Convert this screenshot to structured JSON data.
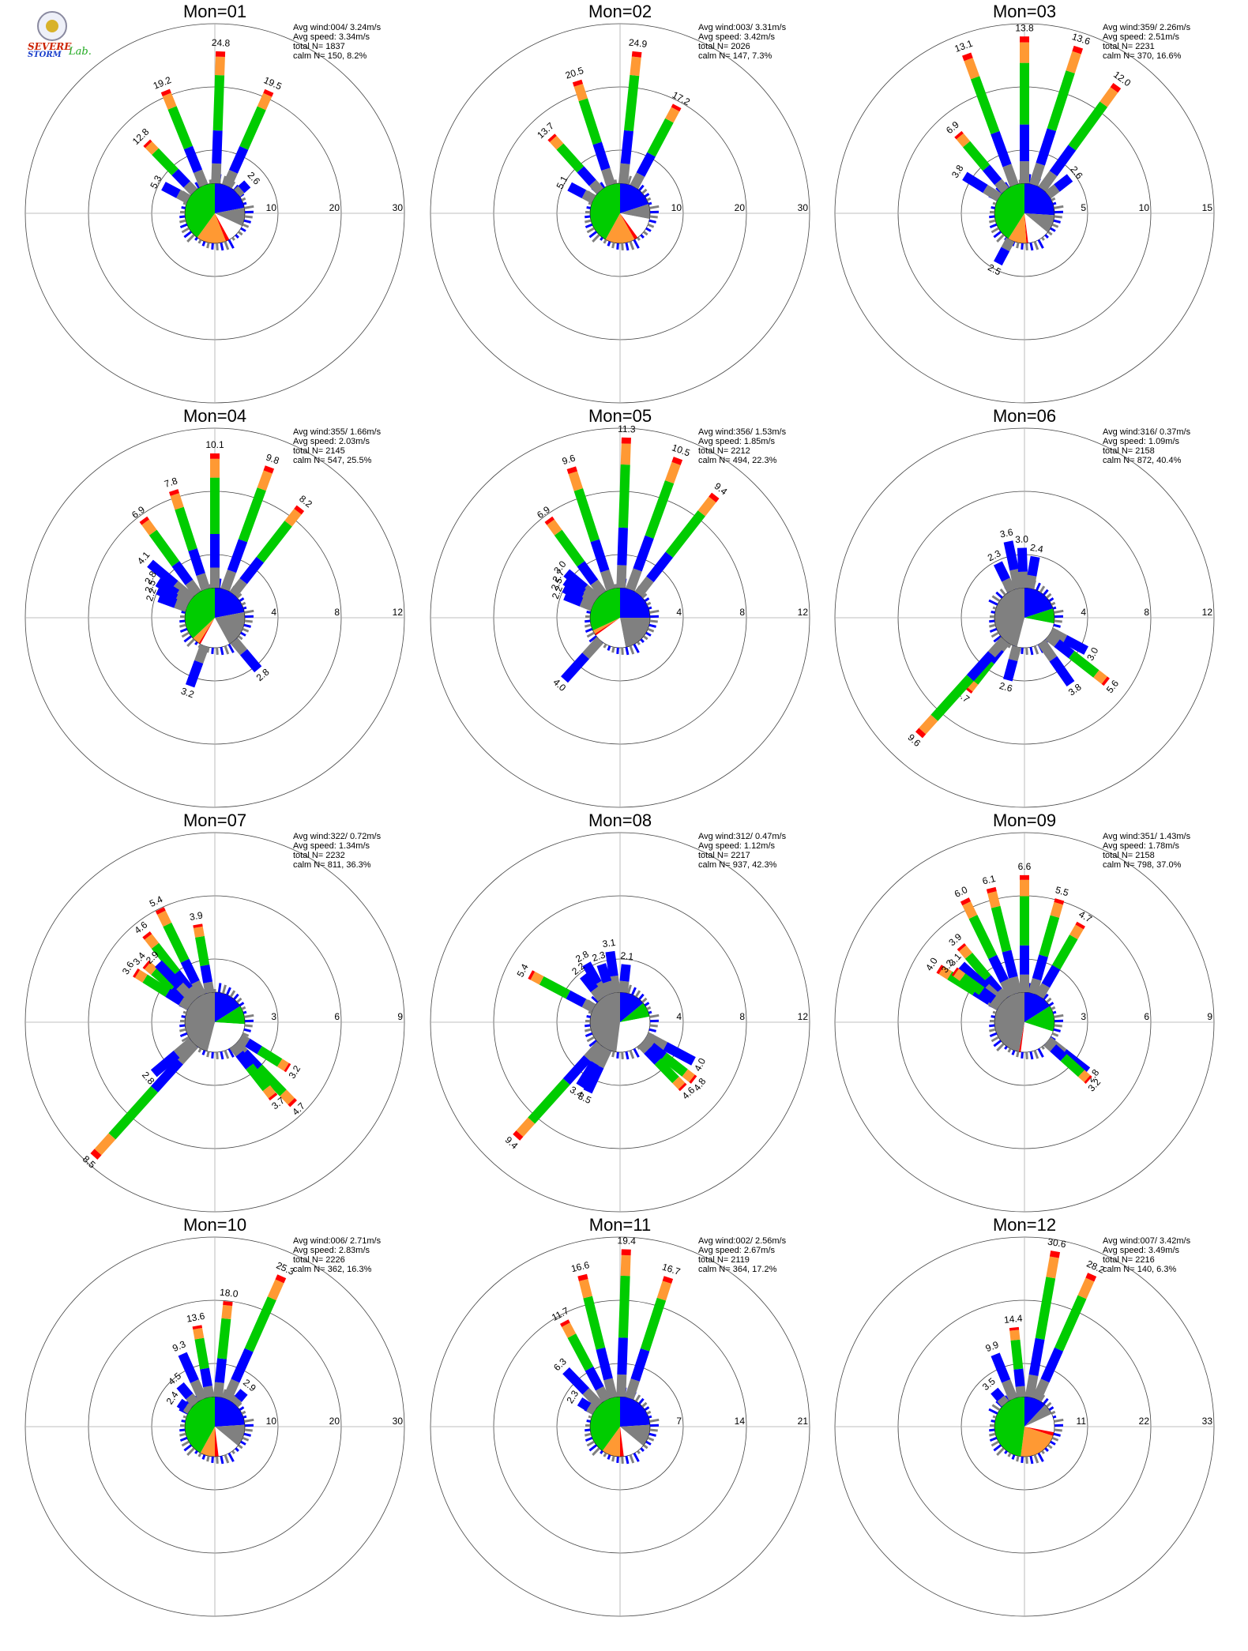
{
  "logo": {
    "line1": "SEVERE",
    "line2": "STORM",
    "line3": "Lab."
  },
  "colors": {
    "calm": "#ffffff",
    "gray": "#808080",
    "blue": "#0000ff",
    "green": "#00cc00",
    "orange": "#ff9933",
    "red": "#ff0000"
  },
  "chart_data": [
    {
      "type": "polar-bar",
      "title": "Mon=01",
      "rmax": 30,
      "ticks": [
        "10",
        "20",
        "30"
      ],
      "stats": [
        "Avg wind:004/ 3.24m/s",
        "Avg speed: 3.34m/s",
        "total N=      1837",
        "calm N=    150,   8.2%"
      ],
      "petals": [
        {
          "deg": 2,
          "value": 24.8,
          "label": "24.8"
        },
        {
          "deg": -22,
          "value": 19.2,
          "label": "19.2"
        },
        {
          "deg": 24,
          "value": 19.5,
          "label": "19.5"
        },
        {
          "deg": -44,
          "value": 12.8,
          "label": "12.8"
        },
        {
          "deg": -62,
          "value": 5.3,
          "label": "5.3"
        },
        {
          "deg": 48,
          "value": 2.6,
          "label": "2.6"
        }
      ],
      "pie": [
        {
          "color": "blue",
          "pct": 22
        },
        {
          "color": "gray",
          "pct": 10
        },
        {
          "color": "white",
          "pct": 10
        },
        {
          "color": "red",
          "pct": 2
        },
        {
          "color": "orange",
          "pct": 16
        },
        {
          "color": "green",
          "pct": 40
        }
      ]
    },
    {
      "type": "polar-bar",
      "title": "Mon=02",
      "rmax": 30,
      "ticks": [
        "10",
        "20",
        "30"
      ],
      "stats": [
        "Avg wind:003/ 3.31m/s",
        "Avg speed: 3.42m/s",
        "total N=      2026",
        "calm N=    147,   7.3%"
      ],
      "petals": [
        {
          "deg": 6,
          "value": 24.9,
          "label": "24.9"
        },
        {
          "deg": -18,
          "value": 20.5,
          "label": "20.5"
        },
        {
          "deg": 28,
          "value": 17.2,
          "label": "17.2"
        },
        {
          "deg": -42,
          "value": 13.7,
          "label": "13.7"
        },
        {
          "deg": -62,
          "value": 5.1,
          "label": "5.1"
        }
      ],
      "pie": [
        {
          "color": "blue",
          "pct": 20
        },
        {
          "color": "gray",
          "pct": 8
        },
        {
          "color": "white",
          "pct": 12
        },
        {
          "color": "red",
          "pct": 2
        },
        {
          "color": "orange",
          "pct": 16
        },
        {
          "color": "green",
          "pct": 42
        }
      ]
    },
    {
      "type": "polar-bar",
      "title": "Mon=03",
      "rmax": 15,
      "ticks": [
        "5",
        "10",
        "15"
      ],
      "stats": [
        "Avg wind:359/ 2.26m/s",
        "Avg speed: 2.51m/s",
        "total N=      2231",
        "calm N=    370,  16.6%"
      ],
      "petals": [
        {
          "deg": 0,
          "value": 13.8,
          "label": "13.8"
        },
        {
          "deg": -20,
          "value": 13.1,
          "label": "13.1"
        },
        {
          "deg": 18,
          "value": 13.6,
          "label": "13.6"
        },
        {
          "deg": 36,
          "value": 12.0,
          "label": "12.0"
        },
        {
          "deg": -40,
          "value": 6.9,
          "label": "6.9"
        },
        {
          "deg": -58,
          "value": 3.8,
          "label": "3.8"
        },
        {
          "deg": 52,
          "value": 2.6,
          "label": "2.6"
        },
        {
          "deg": 208,
          "value": 2.5,
          "label": "2.5"
        }
      ],
      "pie": [
        {
          "color": "blue",
          "pct": 26
        },
        {
          "color": "gray",
          "pct": 10
        },
        {
          "color": "white",
          "pct": 12
        },
        {
          "color": "red",
          "pct": 1
        },
        {
          "color": "orange",
          "pct": 10
        },
        {
          "color": "green",
          "pct": 41
        }
      ]
    },
    {
      "type": "polar-bar",
      "title": "Mon=04",
      "rmax": 12,
      "ticks": [
        "4",
        "8",
        "12"
      ],
      "stats": [
        "Avg wind:355/ 1.66m/s",
        "Avg speed: 2.03m/s",
        "total N=      2145",
        "calm N=    547,  25.5%"
      ],
      "petals": [
        {
          "deg": 0,
          "value": 10.1,
          "label": "10.1"
        },
        {
          "deg": 20,
          "value": 9.8,
          "label": "9.8"
        },
        {
          "deg": 38,
          "value": 8.2,
          "label": "8.2"
        },
        {
          "deg": -18,
          "value": 7.8,
          "label": "7.8"
        },
        {
          "deg": -36,
          "value": 6.9,
          "label": "6.9"
        },
        {
          "deg": -50,
          "value": 4.1,
          "label": "4.1"
        },
        {
          "deg": -58,
          "value": 2.8,
          "label": "2.8"
        },
        {
          "deg": -64,
          "value": 2.5,
          "label": "2.5"
        },
        {
          "deg": -70,
          "value": 2.2,
          "label": "2.2"
        },
        {
          "deg": 140,
          "value": 2.8,
          "label": "2.8"
        },
        {
          "deg": 200,
          "value": 3.2,
          "label": "3.2"
        }
      ],
      "pie": [
        {
          "color": "blue",
          "pct": 22
        },
        {
          "color": "gray",
          "pct": 20
        },
        {
          "color": "white",
          "pct": 16
        },
        {
          "color": "red",
          "pct": 1
        },
        {
          "color": "orange",
          "pct": 4
        },
        {
          "color": "green",
          "pct": 37
        }
      ]
    },
    {
      "type": "polar-bar",
      "title": "Mon=05",
      "rmax": 12,
      "ticks": [
        "4",
        "8",
        "12"
      ],
      "stats": [
        "Avg wind:356/ 1.53m/s",
        "Avg speed: 1.85m/s",
        "total N=      2212",
        "calm N=    494,  22.3%"
      ],
      "petals": [
        {
          "deg": 2,
          "value": 11.3,
          "label": "11.3"
        },
        {
          "deg": 20,
          "value": 10.5,
          "label": "10.5"
        },
        {
          "deg": -18,
          "value": 9.6,
          "label": "9.6"
        },
        {
          "deg": 38,
          "value": 9.4,
          "label": "9.4"
        },
        {
          "deg": -36,
          "value": 6.9,
          "label": "6.9"
        },
        {
          "deg": -50,
          "value": 3.0,
          "label": "3.0"
        },
        {
          "deg": -56,
          "value": 2.7,
          "label": "2.7"
        },
        {
          "deg": -62,
          "value": 2.5,
          "label": "2.5"
        },
        {
          "deg": -68,
          "value": 2.2,
          "label": "2.2"
        },
        {
          "deg": 222,
          "value": 4.0,
          "label": "4.0"
        }
      ],
      "pie": [
        {
          "color": "blue",
          "pct": 25
        },
        {
          "color": "gray",
          "pct": 22
        },
        {
          "color": "white",
          "pct": 18
        },
        {
          "color": "red",
          "pct": 1
        },
        {
          "color": "orange",
          "pct": 2
        },
        {
          "color": "green",
          "pct": 32
        }
      ]
    },
    {
      "type": "polar-bar",
      "title": "Mon=06",
      "rmax": 12,
      "ticks": [
        "4",
        "8",
        "12"
      ],
      "stats": [
        "Avg wind:316/ 0.37m/s",
        "Avg speed: 1.09m/s",
        "total N=      2158",
        "calm N=    872,  40.4%"
      ],
      "petals": [
        {
          "deg": -12,
          "value": 3.6,
          "label": "3.6"
        },
        {
          "deg": -2,
          "value": 3.0,
          "label": "3.0"
        },
        {
          "deg": 10,
          "value": 2.4,
          "label": "2.4"
        },
        {
          "deg": -26,
          "value": 2.3,
          "label": "2.3"
        },
        {
          "deg": 118,
          "value": 3.0,
          "label": "3.0"
        },
        {
          "deg": 128,
          "value": 5.6,
          "label": "5.6"
        },
        {
          "deg": 145,
          "value": 3.8,
          "label": "3.8"
        },
        {
          "deg": 195,
          "value": 2.6,
          "label": "2.6"
        },
        {
          "deg": 218,
          "value": 4.7,
          "label": "4.7"
        },
        {
          "deg": 222,
          "value": 9.6,
          "label": "9.6"
        }
      ],
      "pie": [
        {
          "color": "blue",
          "pct": 20
        },
        {
          "color": "green",
          "pct": 8
        },
        {
          "color": "white",
          "pct": 26
        },
        {
          "color": "gray",
          "pct": 46
        }
      ]
    },
    {
      "type": "polar-bar",
      "title": "Mon=07",
      "rmax": 9,
      "ticks": [
        "3",
        "6",
        "9"
      ],
      "stats": [
        "Avg wind:322/ 0.72m/s",
        "Avg speed: 1.34m/s",
        "total N=      2232",
        "calm N=    811,  36.3%"
      ],
      "petals": [
        {
          "deg": -26,
          "value": 5.4,
          "label": "5.4"
        },
        {
          "deg": -10,
          "value": 3.9,
          "label": "3.9"
        },
        {
          "deg": -38,
          "value": 4.6,
          "label": "4.6"
        },
        {
          "deg": -50,
          "value": 3.4,
          "label": "3.4"
        },
        {
          "deg": -58,
          "value": 3.6,
          "label": "3.6"
        },
        {
          "deg": -44,
          "value": 2.9,
          "label": "2.9"
        },
        {
          "deg": 122,
          "value": 3.2,
          "label": "3.2"
        },
        {
          "deg": 136,
          "value": 4.7,
          "label": "4.7"
        },
        {
          "deg": 142,
          "value": 3.7,
          "label": "3.7"
        },
        {
          "deg": 222,
          "value": 8.5,
          "label": "8.5"
        },
        {
          "deg": 230,
          "value": 2.8,
          "label": "2.8"
        }
      ],
      "pie": [
        {
          "color": "blue",
          "pct": 16
        },
        {
          "color": "green",
          "pct": 10
        },
        {
          "color": "white",
          "pct": 28
        },
        {
          "color": "gray",
          "pct": 46
        }
      ]
    },
    {
      "type": "polar-bar",
      "title": "Mon=08",
      "rmax": 12,
      "ticks": [
        "4",
        "8",
        "12"
      ],
      "stats": [
        "Avg wind:312/ 0.47m/s",
        "Avg speed: 1.12m/s",
        "total N=      2217",
        "calm N=    937,  42.3%"
      ],
      "petals": [
        {
          "deg": -62,
          "value": 5.4,
          "label": "5.4"
        },
        {
          "deg": -8,
          "value": 3.1,
          "label": "3.1"
        },
        {
          "deg": 6,
          "value": 2.1,
          "label": "2.1"
        },
        {
          "deg": -18,
          "value": 2.3,
          "label": "2.3"
        },
        {
          "deg": -30,
          "value": 2.8,
          "label": "2.8"
        },
        {
          "deg": -38,
          "value": 2.2,
          "label": "2.2"
        },
        {
          "deg": 118,
          "value": 4.0,
          "label": "4.0"
        },
        {
          "deg": 128,
          "value": 4.8,
          "label": "4.8"
        },
        {
          "deg": 136,
          "value": 4.6,
          "label": "4.6"
        },
        {
          "deg": 205,
          "value": 3.5,
          "label": "3.5"
        },
        {
          "deg": 212,
          "value": 3.4,
          "label": "3.4"
        },
        {
          "deg": 222,
          "value": 9.4,
          "label": "9.4"
        }
      ],
      "pie": [
        {
          "color": "blue",
          "pct": 14
        },
        {
          "color": "green",
          "pct": 8
        },
        {
          "color": "white",
          "pct": 30
        },
        {
          "color": "gray",
          "pct": 48
        }
      ]
    },
    {
      "type": "polar-bar",
      "title": "Mon=09",
      "rmax": 9,
      "ticks": [
        "3",
        "6",
        "9"
      ],
      "stats": [
        "Avg wind:351/ 1.43m/s",
        "Avg speed: 1.78m/s",
        "total N=      2158",
        "calm N=    798,  37.0%"
      ],
      "petals": [
        {
          "deg": 0,
          "value": 6.6,
          "label": "6.6"
        },
        {
          "deg": -14,
          "value": 6.1,
          "label": "6.1"
        },
        {
          "deg": -26,
          "value": 6.0,
          "label": "6.0"
        },
        {
          "deg": 16,
          "value": 5.5,
          "label": "5.5"
        },
        {
          "deg": 30,
          "value": 4.7,
          "label": "4.7"
        },
        {
          "deg": -58,
          "value": 4.0,
          "label": "4.0"
        },
        {
          "deg": -40,
          "value": 3.9,
          "label": "3.9"
        },
        {
          "deg": -48,
          "value": 3.1,
          "label": "3.1"
        },
        {
          "deg": -54,
          "value": 3.2,
          "label": "3.2"
        },
        {
          "deg": 128,
          "value": 2.8,
          "label": "2.8"
        },
        {
          "deg": 132,
          "value": 3.2,
          "label": "3.2"
        }
      ],
      "pie": [
        {
          "color": "blue",
          "pct": 16
        },
        {
          "color": "green",
          "pct": 14
        },
        {
          "color": "white",
          "pct": 22
        },
        {
          "color": "red",
          "pct": 1
        },
        {
          "color": "gray",
          "pct": 47
        }
      ]
    },
    {
      "type": "polar-bar",
      "title": "Mon=10",
      "rmax": 30,
      "ticks": [
        "10",
        "20",
        "30"
      ],
      "stats": [
        "Avg wind:006/ 2.71m/s",
        "Avg speed: 2.83m/s",
        "total N=      2226",
        "calm N=    362,  16.3%"
      ],
      "petals": [
        {
          "deg": 24,
          "value": 25.3,
          "label": "25.3"
        },
        {
          "deg": 6,
          "value": 18.0,
          "label": "18.0"
        },
        {
          "deg": -10,
          "value": 13.6,
          "label": "13.6"
        },
        {
          "deg": -24,
          "value": 9.3,
          "label": "9.3"
        },
        {
          "deg": -40,
          "value": 4.5,
          "label": "4.5"
        },
        {
          "deg": -56,
          "value": 2.4,
          "label": "2.4"
        },
        {
          "deg": 40,
          "value": 2.9,
          "label": "2.9"
        }
      ],
      "pie": [
        {
          "color": "blue",
          "pct": 24
        },
        {
          "color": "gray",
          "pct": 12
        },
        {
          "color": "white",
          "pct": 12
        },
        {
          "color": "red",
          "pct": 2
        },
        {
          "color": "orange",
          "pct": 8
        },
        {
          "color": "green",
          "pct": 42
        }
      ]
    },
    {
      "type": "polar-bar",
      "title": "Mon=11",
      "rmax": 21,
      "ticks": [
        "7",
        "14",
        "21"
      ],
      "stats": [
        "Avg wind:002/ 2.56m/s",
        "Avg speed: 2.67m/s",
        "total N=      2119",
        "calm N=    364,  17.2%"
      ],
      "petals": [
        {
          "deg": 2,
          "value": 19.4,
          "label": "19.4"
        },
        {
          "deg": -14,
          "value": 16.6,
          "label": "16.6"
        },
        {
          "deg": 18,
          "value": 16.7,
          "label": "16.7"
        },
        {
          "deg": -28,
          "value": 11.7,
          "label": "11.7"
        },
        {
          "deg": -44,
          "value": 6.3,
          "label": "6.3"
        },
        {
          "deg": -58,
          "value": 2.3,
          "label": "2.3"
        }
      ],
      "pie": [
        {
          "color": "blue",
          "pct": 24
        },
        {
          "color": "gray",
          "pct": 12
        },
        {
          "color": "white",
          "pct": 12
        },
        {
          "color": "red",
          "pct": 2
        },
        {
          "color": "orange",
          "pct": 10
        },
        {
          "color": "green",
          "pct": 40
        }
      ]
    },
    {
      "type": "polar-bar",
      "title": "Mon=12",
      "rmax": 33,
      "ticks": [
        "11",
        "22",
        "33"
      ],
      "stats": [
        "Avg wind:007/ 3.42m/s",
        "Avg speed: 3.49m/s",
        "total N=      2216",
        "calm N=    140,   6.3%"
      ],
      "petals": [
        {
          "deg": 10,
          "value": 30.6,
          "label": "30.6"
        },
        {
          "deg": 24,
          "value": 28.2,
          "label": "28.2"
        },
        {
          "deg": -6,
          "value": 14.4,
          "label": "14.4"
        },
        {
          "deg": -22,
          "value": 9.9,
          "label": "9.9"
        },
        {
          "deg": -40,
          "value": 3.5,
          "label": "3.5"
        }
      ],
      "pie": [
        {
          "color": "blue",
          "pct": 12
        },
        {
          "color": "gray",
          "pct": 6
        },
        {
          "color": "white",
          "pct": 10
        },
        {
          "color": "red",
          "pct": 2
        },
        {
          "color": "orange",
          "pct": 22
        },
        {
          "color": "green",
          "pct": 48
        }
      ]
    }
  ]
}
